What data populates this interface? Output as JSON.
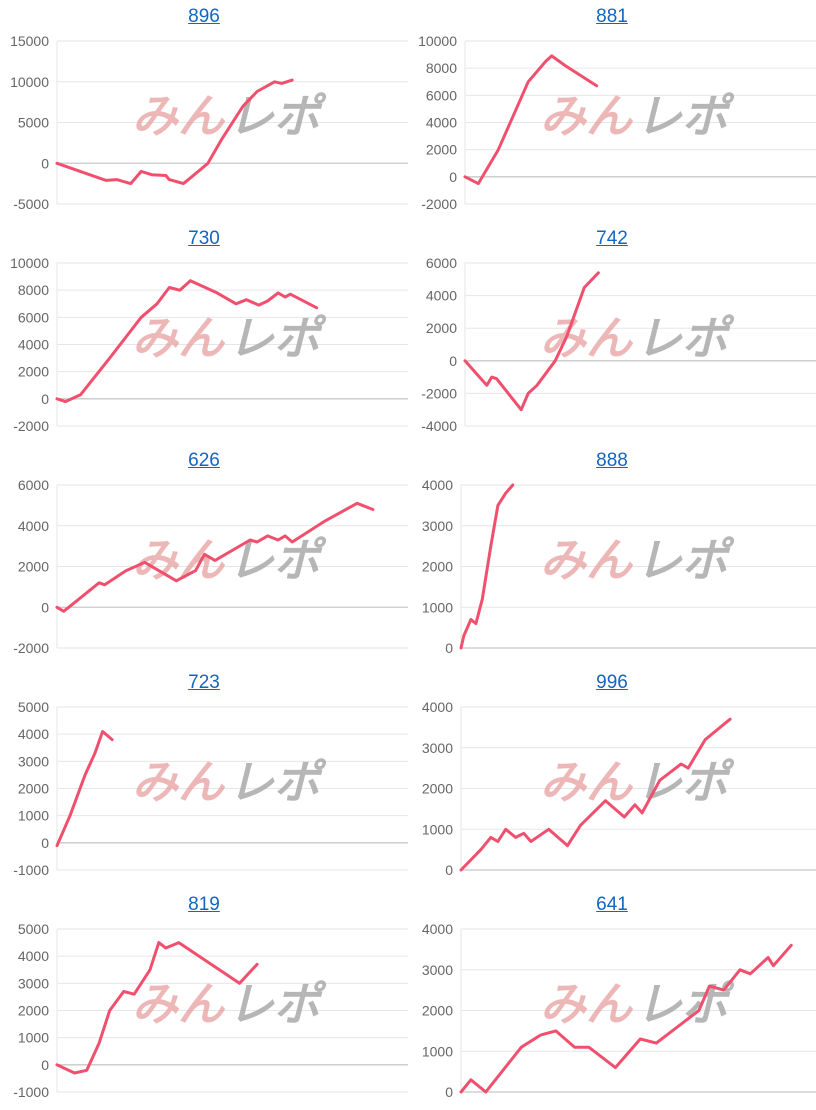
{
  "watermark": "みんレポ",
  "colors": {
    "line": "#f0506e",
    "title_link": "#1565c0",
    "grid": "#e6e6e6",
    "zero_line": "#c8c8c8",
    "tick_text": "#666666"
  },
  "chart_data": [
    {
      "type": "line",
      "title": "896",
      "ylim": [
        -5000,
        15000
      ],
      "ystep": 5000,
      "xlim": [
        0,
        100
      ],
      "grid": true,
      "points": [
        [
          0,
          0
        ],
        [
          14,
          -2100
        ],
        [
          17,
          -2000
        ],
        [
          21,
          -2500
        ],
        [
          24,
          -1000
        ],
        [
          27,
          -1400
        ],
        [
          31,
          -1500
        ],
        [
          32,
          -2000
        ],
        [
          36,
          -2500
        ],
        [
          38,
          -1800
        ],
        [
          43,
          0
        ],
        [
          47,
          3000
        ],
        [
          53,
          7000
        ],
        [
          57,
          8800
        ],
        [
          62,
          10000
        ],
        [
          64,
          9800
        ],
        [
          67,
          10200
        ]
      ]
    },
    {
      "type": "line",
      "title": "881",
      "ylim": [
        -2000,
        10000
      ],
      "ystep": 2000,
      "xlim": [
        0,
        100
      ],
      "grid": true,
      "points": [
        [
          0,
          0
        ],
        [
          3.8,
          -500
        ],
        [
          9.5,
          2000
        ],
        [
          18,
          7000
        ],
        [
          23,
          8500
        ],
        [
          24.7,
          8900
        ],
        [
          28.5,
          8200
        ],
        [
          37.5,
          6700
        ]
      ]
    },
    {
      "type": "line",
      "title": "730",
      "ylim": [
        -2000,
        10000
      ],
      "ystep": 2000,
      "xlim": [
        0,
        100
      ],
      "grid": true,
      "points": [
        [
          0,
          0
        ],
        [
          2.4,
          -200
        ],
        [
          6.7,
          300
        ],
        [
          15,
          3000
        ],
        [
          24,
          6000
        ],
        [
          28.5,
          7000
        ],
        [
          32,
          8200
        ],
        [
          35,
          8000
        ],
        [
          38,
          8700
        ],
        [
          45.6,
          7800
        ],
        [
          51,
          7000
        ],
        [
          54,
          7300
        ],
        [
          57.5,
          6900
        ],
        [
          60,
          7200
        ],
        [
          63,
          7800
        ],
        [
          65,
          7500
        ],
        [
          66.5,
          7700
        ],
        [
          74,
          6700
        ]
      ]
    },
    {
      "type": "line",
      "title": "742",
      "ylim": [
        -4000,
        6000
      ],
      "ystep": 2000,
      "xlim": [
        0,
        100
      ],
      "grid": true,
      "points": [
        [
          0,
          0
        ],
        [
          6.2,
          -1500
        ],
        [
          7.6,
          -1000
        ],
        [
          9,
          -1100
        ],
        [
          16,
          -3000
        ],
        [
          18,
          -2000
        ],
        [
          20.5,
          -1500
        ],
        [
          25.7,
          0
        ],
        [
          29,
          1500
        ],
        [
          34,
          4500
        ],
        [
          38,
          5400
        ]
      ]
    },
    {
      "type": "line",
      "title": "626",
      "ylim": [
        -2000,
        6000
      ],
      "ystep": 2000,
      "xlim": [
        0,
        100
      ],
      "grid": true,
      "points": [
        [
          0,
          0
        ],
        [
          1.9,
          -200
        ],
        [
          12,
          1200
        ],
        [
          13.6,
          1100
        ],
        [
          19.7,
          1800
        ],
        [
          25,
          2200
        ],
        [
          34,
          1300
        ],
        [
          39.5,
          1800
        ],
        [
          42,
          2600
        ],
        [
          45,
          2300
        ],
        [
          55,
          3300
        ],
        [
          57,
          3200
        ],
        [
          60,
          3500
        ],
        [
          63,
          3300
        ],
        [
          65,
          3500
        ],
        [
          67,
          3200
        ],
        [
          76,
          4200
        ],
        [
          85.5,
          5100
        ],
        [
          90,
          4800
        ]
      ]
    },
    {
      "type": "line",
      "title": "888",
      "ylim": [
        0,
        4000
      ],
      "ystep": 1000,
      "xlim": [
        0,
        100
      ],
      "grid": true,
      "points": [
        [
          0,
          0
        ],
        [
          0.8,
          300
        ],
        [
          2.8,
          700
        ],
        [
          4.2,
          600
        ],
        [
          6,
          1200
        ],
        [
          8.4,
          2500
        ],
        [
          10.4,
          3500
        ],
        [
          12.6,
          3800
        ],
        [
          14.6,
          4000
        ]
      ]
    },
    {
      "type": "line",
      "title": "723",
      "ylim": [
        -1000,
        5000
      ],
      "ystep": 1000,
      "xlim": [
        0,
        100
      ],
      "grid": true,
      "points": [
        [
          0,
          -100
        ],
        [
          3.7,
          1000
        ],
        [
          8,
          2500
        ],
        [
          10.8,
          3300
        ],
        [
          13,
          4100
        ],
        [
          15.7,
          3800
        ]
      ]
    },
    {
      "type": "line",
      "title": "996",
      "ylim": [
        0,
        4000
      ],
      "ystep": 1000,
      "xlim": [
        0,
        100
      ],
      "grid": true,
      "points": [
        [
          0,
          0
        ],
        [
          5.6,
          500
        ],
        [
          8.4,
          800
        ],
        [
          10.4,
          700
        ],
        [
          12.6,
          1000
        ],
        [
          15.4,
          800
        ],
        [
          17.7,
          900
        ],
        [
          19.7,
          700
        ],
        [
          24.7,
          1000
        ],
        [
          30,
          600
        ],
        [
          33.7,
          1100
        ],
        [
          40.7,
          1700
        ],
        [
          46,
          1300
        ],
        [
          49,
          1600
        ],
        [
          51,
          1400
        ],
        [
          56,
          2200
        ],
        [
          59,
          2400
        ],
        [
          62,
          2600
        ],
        [
          64,
          2500
        ],
        [
          67.4,
          3000
        ],
        [
          68.8,
          3200
        ],
        [
          75.8,
          3700
        ]
      ]
    },
    {
      "type": "line",
      "title": "819",
      "ylim": [
        -1000,
        5000
      ],
      "ystep": 1000,
      "xlim": [
        0,
        100
      ],
      "grid": true,
      "points": [
        [
          0,
          0
        ],
        [
          5,
          -300
        ],
        [
          8.5,
          -200
        ],
        [
          12,
          800
        ],
        [
          15,
          2000
        ],
        [
          19,
          2700
        ],
        [
          22,
          2600
        ],
        [
          26.5,
          3500
        ],
        [
          29,
          4500
        ],
        [
          31,
          4300
        ],
        [
          34.7,
          4500
        ],
        [
          52,
          3000
        ],
        [
          57,
          3700
        ]
      ]
    },
    {
      "type": "line",
      "title": "641",
      "ylim": [
        0,
        4000
      ],
      "ystep": 1000,
      "xlim": [
        0,
        100
      ],
      "grid": true,
      "points": [
        [
          0,
          0
        ],
        [
          2.8,
          300
        ],
        [
          7,
          0
        ],
        [
          17,
          1100
        ],
        [
          22.5,
          1400
        ],
        [
          26.7,
          1500
        ],
        [
          32,
          1100
        ],
        [
          36,
          1100
        ],
        [
          43.5,
          600
        ],
        [
          50.5,
          1300
        ],
        [
          55,
          1200
        ],
        [
          67,
          2000
        ],
        [
          70,
          2600
        ],
        [
          74,
          2500
        ],
        [
          78.6,
          3000
        ],
        [
          81.5,
          2900
        ],
        [
          86.5,
          3300
        ],
        [
          88,
          3100
        ],
        [
          93,
          3600
        ]
      ]
    }
  ]
}
